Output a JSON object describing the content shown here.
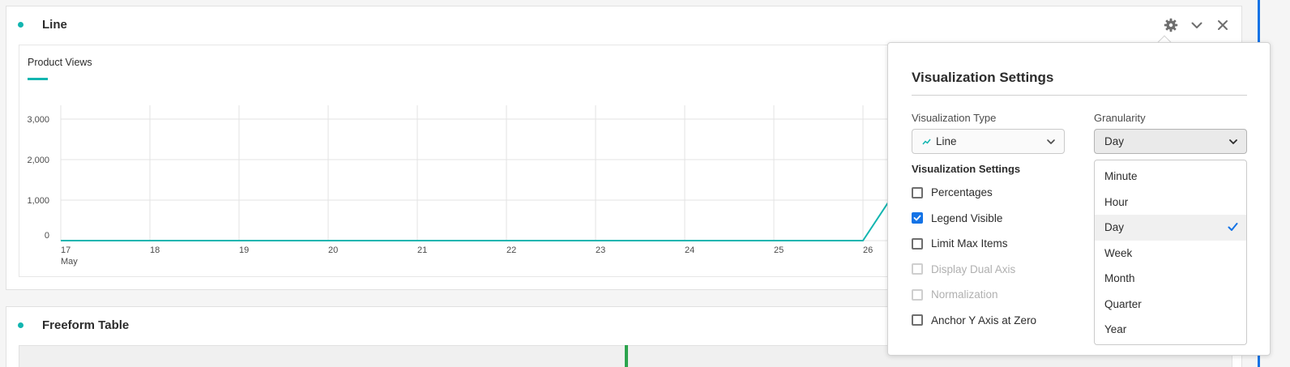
{
  "panels": {
    "line": {
      "title": "Line"
    },
    "table": {
      "title": "Freeform Table"
    }
  },
  "icons": {
    "settings": "gear-icon",
    "collapse": "chevron-down-icon",
    "close": "close-icon"
  },
  "colors": {
    "accent_teal": "#12b5b0",
    "checkbox_blue": "#1473e6",
    "green_marker": "#2da44e"
  },
  "legend": {
    "label": "Product Views"
  },
  "chart_data": {
    "type": "line",
    "categories": [
      "17",
      "18",
      "19",
      "20",
      "21",
      "22",
      "23",
      "24",
      "25",
      "26"
    ],
    "x_sublabel": {
      "index": 0,
      "text": "May"
    },
    "yticks": [
      "3,000",
      "2,000",
      "1,000",
      "0"
    ],
    "ylim": [
      0,
      3000
    ],
    "series": [
      {
        "name": "Product Views",
        "values": [
          0,
          0,
          0,
          0,
          0,
          0,
          0,
          0,
          0,
          0
        ]
      }
    ],
    "trailing_segment_end_value": 1000,
    "grid": true,
    "legend_position": "top-left"
  },
  "popover": {
    "title": "Visualization Settings",
    "viz_type": {
      "label": "Visualization Type",
      "value": "Line"
    },
    "granularity": {
      "label": "Granularity",
      "value": "Day",
      "options": [
        "Minute",
        "Hour",
        "Day",
        "Week",
        "Month",
        "Quarter",
        "Year"
      ],
      "selected": "Day"
    },
    "settings_heading": "Visualization Settings",
    "checkboxes": [
      {
        "label": "Percentages",
        "checked": false,
        "disabled": false
      },
      {
        "label": "Legend Visible",
        "checked": true,
        "disabled": false
      },
      {
        "label": "Limit Max Items",
        "checked": false,
        "disabled": false
      },
      {
        "label": "Display Dual Axis",
        "checked": false,
        "disabled": true
      },
      {
        "label": "Normalization",
        "checked": false,
        "disabled": true
      },
      {
        "label": "Anchor Y Axis at Zero",
        "checked": false,
        "disabled": false
      }
    ]
  }
}
